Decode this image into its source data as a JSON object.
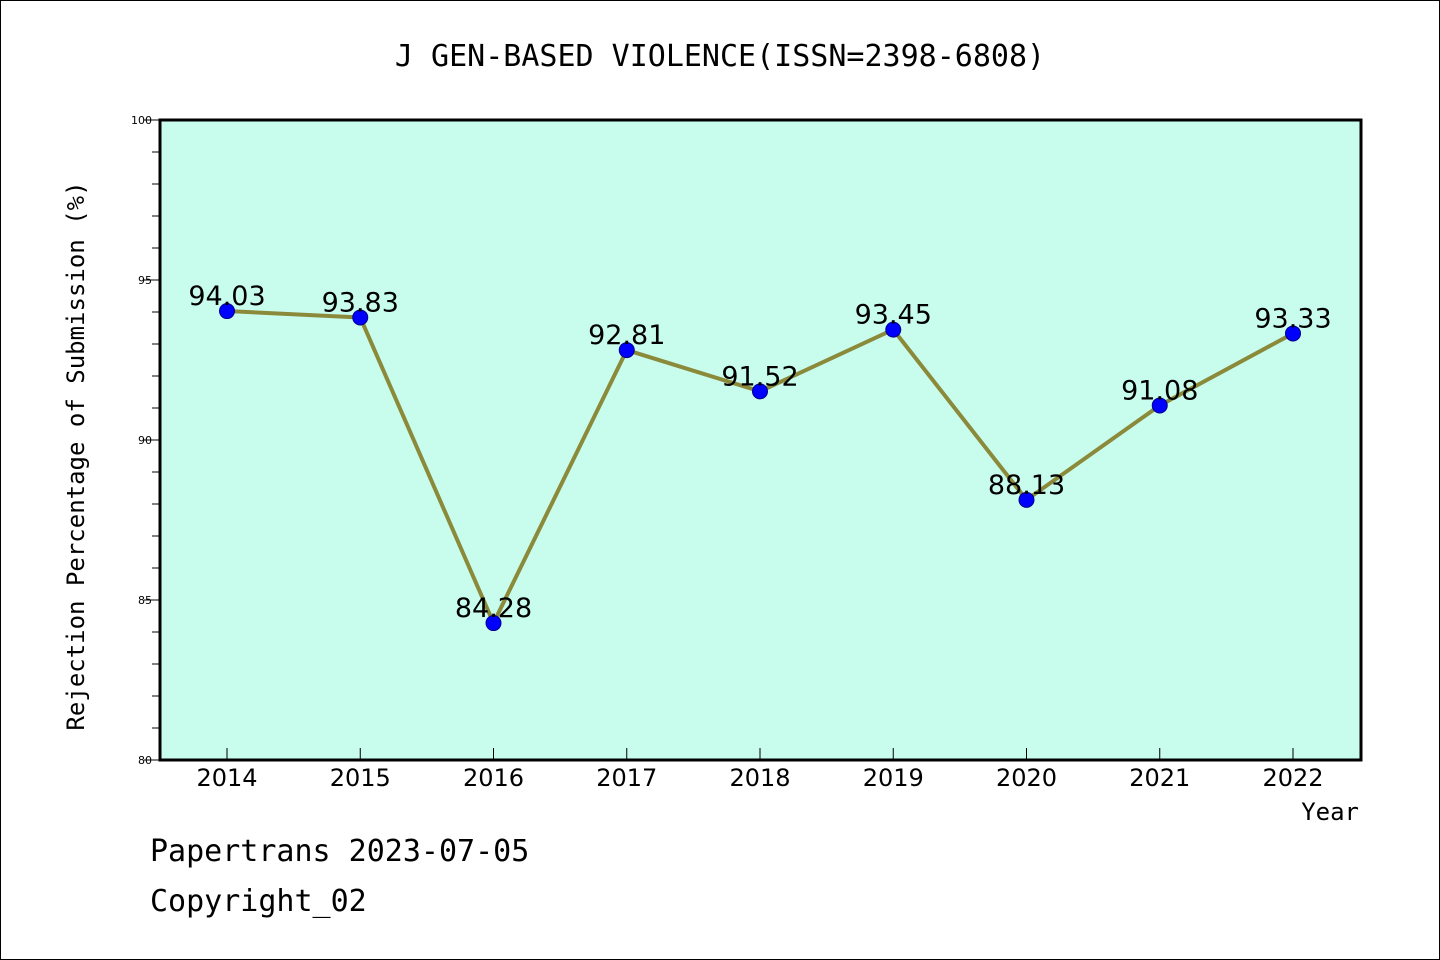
{
  "chart_data": {
    "type": "line",
    "title": "J GEN-BASED VIOLENCE(ISSN=2398-6808)",
    "xlabel": "Year",
    "ylabel": "Rejection Percentage of Submission (%)",
    "categories": [
      "2014",
      "2015",
      "2016",
      "2017",
      "2018",
      "2019",
      "2020",
      "2021",
      "2022"
    ],
    "values": [
      94.03,
      93.83,
      84.28,
      92.81,
      91.52,
      93.45,
      88.13,
      91.08,
      93.33
    ],
    "data_labels": [
      "94.03",
      "93.83",
      "84.28",
      "92.81",
      "91.52",
      "93.45",
      "88.13",
      "91.08",
      "93.33"
    ],
    "ylim": [
      80,
      100
    ],
    "yticks": [
      "80",
      "85",
      "90",
      "95",
      "100"
    ],
    "grid": false,
    "colors": {
      "plot_background": "#c8fdee",
      "line": "#8b8a3a",
      "marker": "#0000ff"
    }
  },
  "footer": {
    "line1": "Papertrans 2023-07-05",
    "line2": "Copyright_02"
  }
}
